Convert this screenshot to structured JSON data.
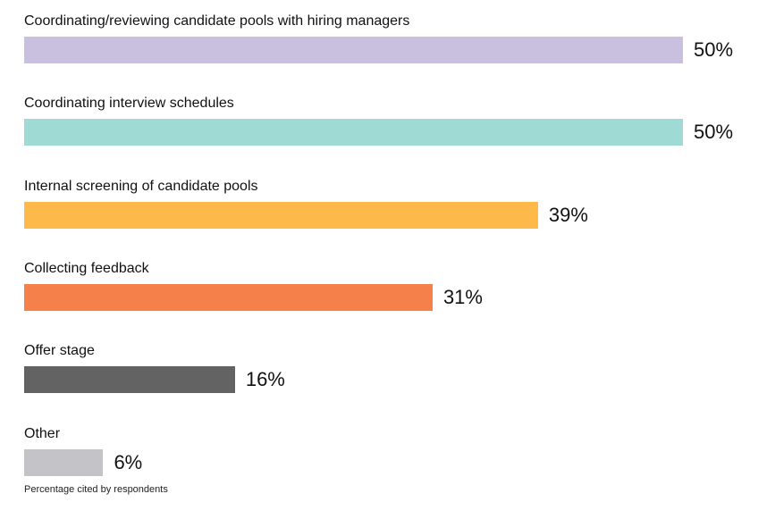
{
  "chart_data": {
    "type": "bar",
    "orientation": "horizontal",
    "categories": [
      "Coordinating/reviewing candidate pools with hiring managers",
      "Coordinating interview schedules",
      "Internal screening of candidate pools",
      "Collecting feedback",
      "Offer stage",
      "Other"
    ],
    "values": [
      50,
      50,
      39,
      31,
      16,
      6
    ],
    "value_labels": [
      "50%",
      "50%",
      "39%",
      "31%",
      "16%",
      "6%"
    ],
    "colors": [
      "#c9c0e0",
      "#9fdbd4",
      "#fdb94a",
      "#f5804a",
      "#636363",
      "#c4c4c8"
    ],
    "xlim": [
      0,
      50
    ],
    "grid": false,
    "footnote": "Percentage cited by respondents"
  }
}
